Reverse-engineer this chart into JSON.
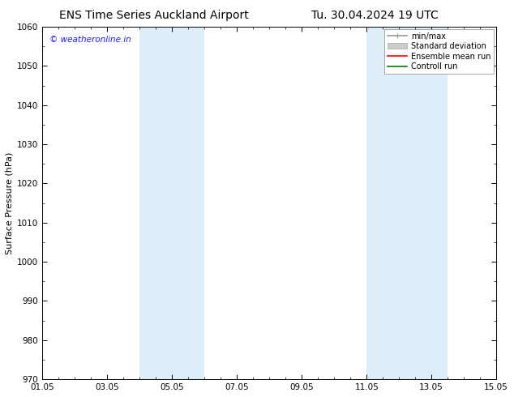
{
  "title_left": "ENS Time Series Auckland Airport",
  "title_right": "Tu. 30.04.2024 19 UTC",
  "ylabel": "Surface Pressure (hPa)",
  "ylim": [
    970,
    1060
  ],
  "yticks": [
    970,
    980,
    990,
    1000,
    1010,
    1020,
    1030,
    1040,
    1050,
    1060
  ],
  "xlim_start": 0,
  "xlim_end": 14,
  "xtick_positions": [
    0,
    2,
    4,
    6,
    8,
    10,
    12,
    14
  ],
  "xtick_labels": [
    "01.05",
    "03.05",
    "05.05",
    "07.05",
    "09.05",
    "11.05",
    "13.05",
    "15.05"
  ],
  "shaded_bands": [
    {
      "x_start": 3.0,
      "x_end": 5.0,
      "color": "#ddeef9"
    },
    {
      "x_start": 10.0,
      "x_end": 12.5,
      "color": "#ddeef9"
    }
  ],
  "watermark": "© weatheronline.in",
  "watermark_color": "#1a1aff",
  "legend_items": [
    {
      "label": "min/max",
      "color": "#999999",
      "lw": 1.2
    },
    {
      "label": "Standard deviation",
      "color": "#cccccc",
      "lw": 5
    },
    {
      "label": "Ensemble mean run",
      "color": "#ff0000",
      "lw": 1.2
    },
    {
      "label": "Controll run",
      "color": "#008000",
      "lw": 1.2
    }
  ],
  "bg_color": "#ffffff",
  "title_fontsize": 10,
  "axis_label_fontsize": 8,
  "tick_fontsize": 7.5
}
